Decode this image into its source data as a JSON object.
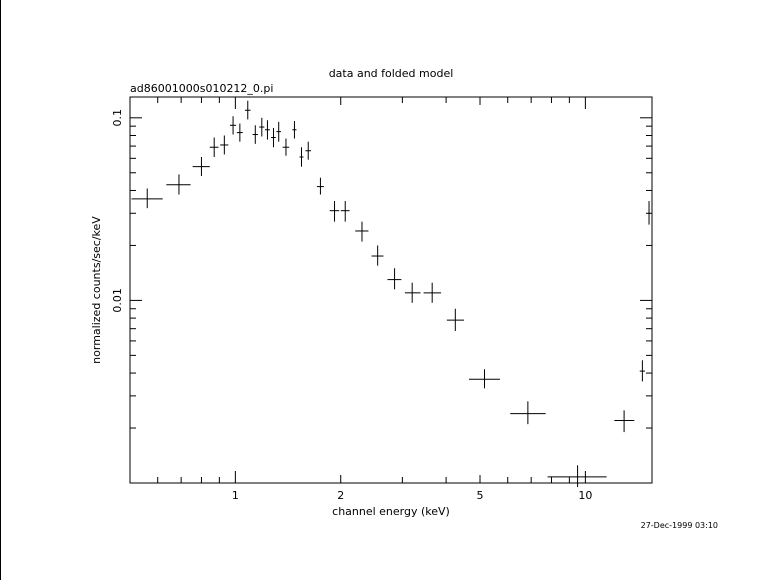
{
  "chart_data": {
    "type": "scatter",
    "title": "data and folded model",
    "subtitle": "ad86001000s010212_0.pi",
    "xlabel": "channel energy (keV)",
    "ylabel": "normalized counts/sec/keV",
    "timestamp": "27-Dec-1999 03:10",
    "x_scale": "log",
    "y_scale": "log",
    "xlim": [
      0.5,
      15.5
    ],
    "ylim": [
      0.001,
      0.13
    ],
    "grid": false,
    "legend": "none",
    "x_tick_labels": [
      {
        "value": 1,
        "label": "1"
      },
      {
        "value": 2,
        "label": "2"
      },
      {
        "value": 5,
        "label": "5"
      },
      {
        "value": 10,
        "label": "10"
      }
    ],
    "y_tick_labels": [
      {
        "value": 0.1,
        "label": "0.1"
      },
      {
        "value": 0.01,
        "label": "0.01"
      }
    ],
    "points": [
      {
        "x": 0.56,
        "xlo": 0.505,
        "xhi": 0.62,
        "y": 0.036,
        "ylo": 0.032,
        "yhi": 0.041
      },
      {
        "x": 0.69,
        "xlo": 0.635,
        "xhi": 0.745,
        "y": 0.043,
        "ylo": 0.038,
        "yhi": 0.049
      },
      {
        "x": 0.8,
        "xlo": 0.755,
        "xhi": 0.845,
        "y": 0.054,
        "ylo": 0.048,
        "yhi": 0.061
      },
      {
        "x": 0.87,
        "xlo": 0.845,
        "xhi": 0.895,
        "y": 0.069,
        "ylo": 0.061,
        "yhi": 0.078
      },
      {
        "x": 0.93,
        "xlo": 0.905,
        "xhi": 0.955,
        "y": 0.071,
        "ylo": 0.063,
        "yhi": 0.08
      },
      {
        "x": 0.985,
        "xlo": 0.965,
        "xhi": 1.005,
        "y": 0.091,
        "ylo": 0.081,
        "yhi": 0.102
      },
      {
        "x": 1.03,
        "xlo": 1.01,
        "xhi": 1.05,
        "y": 0.083,
        "ylo": 0.074,
        "yhi": 0.093
      },
      {
        "x": 1.085,
        "xlo": 1.065,
        "xhi": 1.105,
        "y": 0.11,
        "ylo": 0.098,
        "yhi": 0.124
      },
      {
        "x": 1.14,
        "xlo": 1.12,
        "xhi": 1.16,
        "y": 0.081,
        "ylo": 0.072,
        "yhi": 0.091
      },
      {
        "x": 1.19,
        "xlo": 1.17,
        "xhi": 1.21,
        "y": 0.089,
        "ylo": 0.079,
        "yhi": 0.1
      },
      {
        "x": 1.235,
        "xlo": 1.215,
        "xhi": 1.255,
        "y": 0.086,
        "ylo": 0.076,
        "yhi": 0.097
      },
      {
        "x": 1.285,
        "xlo": 1.265,
        "xhi": 1.305,
        "y": 0.078,
        "ylo": 0.069,
        "yhi": 0.088
      },
      {
        "x": 1.33,
        "xlo": 1.31,
        "xhi": 1.35,
        "y": 0.084,
        "ylo": 0.074,
        "yhi": 0.095
      },
      {
        "x": 1.395,
        "xlo": 1.365,
        "xhi": 1.425,
        "y": 0.069,
        "ylo": 0.062,
        "yhi": 0.077
      },
      {
        "x": 1.475,
        "xlo": 1.455,
        "xhi": 1.495,
        "y": 0.086,
        "ylo": 0.077,
        "yhi": 0.096
      },
      {
        "x": 1.545,
        "xlo": 1.525,
        "xhi": 1.565,
        "y": 0.061,
        "ylo": 0.054,
        "yhi": 0.069
      },
      {
        "x": 1.615,
        "xlo": 1.585,
        "xhi": 1.645,
        "y": 0.066,
        "ylo": 0.059,
        "yhi": 0.074
      },
      {
        "x": 1.75,
        "xlo": 1.71,
        "xhi": 1.79,
        "y": 0.042,
        "ylo": 0.038,
        "yhi": 0.047
      },
      {
        "x": 1.92,
        "xlo": 1.86,
        "xhi": 1.98,
        "y": 0.031,
        "ylo": 0.027,
        "yhi": 0.035
      },
      {
        "x": 2.06,
        "xlo": 2.0,
        "xhi": 2.12,
        "y": 0.031,
        "ylo": 0.027,
        "yhi": 0.035
      },
      {
        "x": 2.3,
        "xlo": 2.2,
        "xhi": 2.4,
        "y": 0.024,
        "ylo": 0.021,
        "yhi": 0.027
      },
      {
        "x": 2.55,
        "xlo": 2.45,
        "xhi": 2.65,
        "y": 0.0175,
        "ylo": 0.0155,
        "yhi": 0.02
      },
      {
        "x": 2.85,
        "xlo": 2.72,
        "xhi": 2.98,
        "y": 0.013,
        "ylo": 0.0115,
        "yhi": 0.015
      },
      {
        "x": 3.2,
        "xlo": 3.05,
        "xhi": 3.38,
        "y": 0.011,
        "ylo": 0.0097,
        "yhi": 0.0125
      },
      {
        "x": 3.65,
        "xlo": 3.45,
        "xhi": 3.87,
        "y": 0.011,
        "ylo": 0.0097,
        "yhi": 0.0125
      },
      {
        "x": 4.25,
        "xlo": 4.02,
        "xhi": 4.5,
        "y": 0.0078,
        "ylo": 0.0068,
        "yhi": 0.009
      },
      {
        "x": 5.15,
        "xlo": 4.65,
        "xhi": 5.7,
        "y": 0.0037,
        "ylo": 0.0033,
        "yhi": 0.0042
      },
      {
        "x": 6.85,
        "xlo": 6.1,
        "xhi": 7.7,
        "y": 0.0024,
        "ylo": 0.0021,
        "yhi": 0.0028
      },
      {
        "x": 9.5,
        "xlo": 7.8,
        "xhi": 11.5,
        "y": 0.00108,
        "ylo": 0.00095,
        "yhi": 0.00125
      },
      {
        "x": 12.9,
        "xlo": 12.1,
        "xhi": 13.8,
        "y": 0.0022,
        "ylo": 0.0019,
        "yhi": 0.0025
      },
      {
        "x": 14.55,
        "xlo": 14.3,
        "xhi": 14.8,
        "y": 0.0041,
        "ylo": 0.0036,
        "yhi": 0.0047
      },
      {
        "x": 15.2,
        "xlo": 15.12,
        "xhi": 15.28,
        "y": 0.03,
        "ylo": 0.026,
        "yhi": 0.035
      }
    ]
  }
}
